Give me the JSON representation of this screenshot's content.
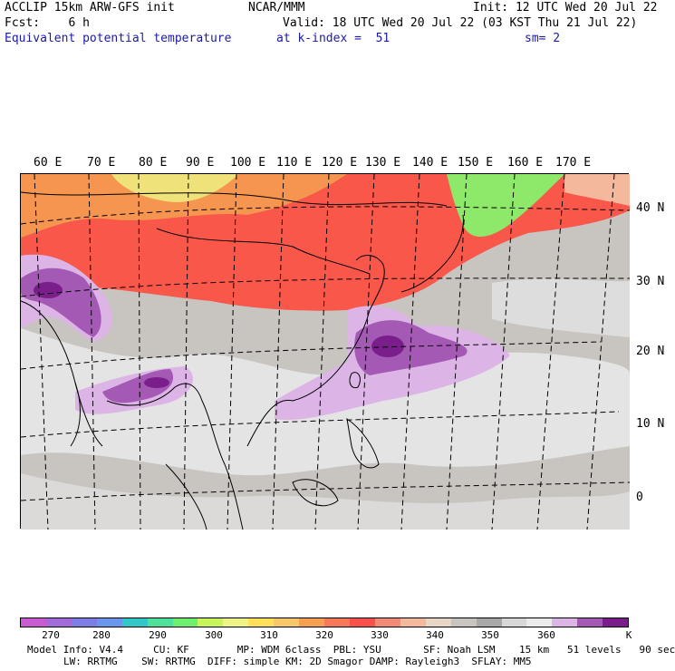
{
  "header": {
    "model": "ACCLIP 15km ARW-GFS init",
    "center": "NCAR/MMM",
    "init": "Init: 12 UTC Wed 20 Jul 22",
    "fcst": "Fcst:    6 h",
    "valid": "Valid: 18 UTC Wed 20 Jul 22 (03 KST Thu 21 Jul 22)",
    "field": "Equivalent potential temperature",
    "level": "at k-index =  51",
    "smooth": "sm= 2"
  },
  "map": {
    "lon_labels": [
      "60 E",
      "70 E",
      "80 E",
      "90 E",
      "100 E",
      "110 E",
      "120 E",
      "130 E",
      "140 E",
      "150 E",
      "160 E",
      "170 E"
    ],
    "lat_labels": [
      "40 N",
      "30 N",
      "20 N",
      "10 N",
      "0"
    ]
  },
  "colorbar": {
    "colors": [
      "#c85ad2",
      "#a36ad9",
      "#7d7de6",
      "#6a96ec",
      "#33c8c8",
      "#4fe09a",
      "#6ef06e",
      "#c8f55a",
      "#eef586",
      "#ffe05a",
      "#f6c86a",
      "#f4a050",
      "#f8785a",
      "#f8504a",
      "#f28a78",
      "#f4b89c",
      "#e8d6c4",
      "#c8c4c0",
      "#a8a8a8",
      "#d8d8d8",
      "#ebebeb",
      "#dcb4e6",
      "#a45ab4",
      "#7a1e8c"
    ],
    "ticks": [
      "270",
      "280",
      "290",
      "300",
      "310",
      "320",
      "330",
      "340",
      "350",
      "360"
    ],
    "unit": "K"
  },
  "footer": {
    "line1": "Model Info: V4.4     CU: KF        MP: WDM 6class  PBL: YSU       SF: Noah LSM    15 km   51 levels   90 sec",
    "line2": "LW: RRTMG    SW: RRTMG  DIFF: simple KM: 2D Smagor DAMP: Rayleigh3  SFLAY: MM5"
  }
}
